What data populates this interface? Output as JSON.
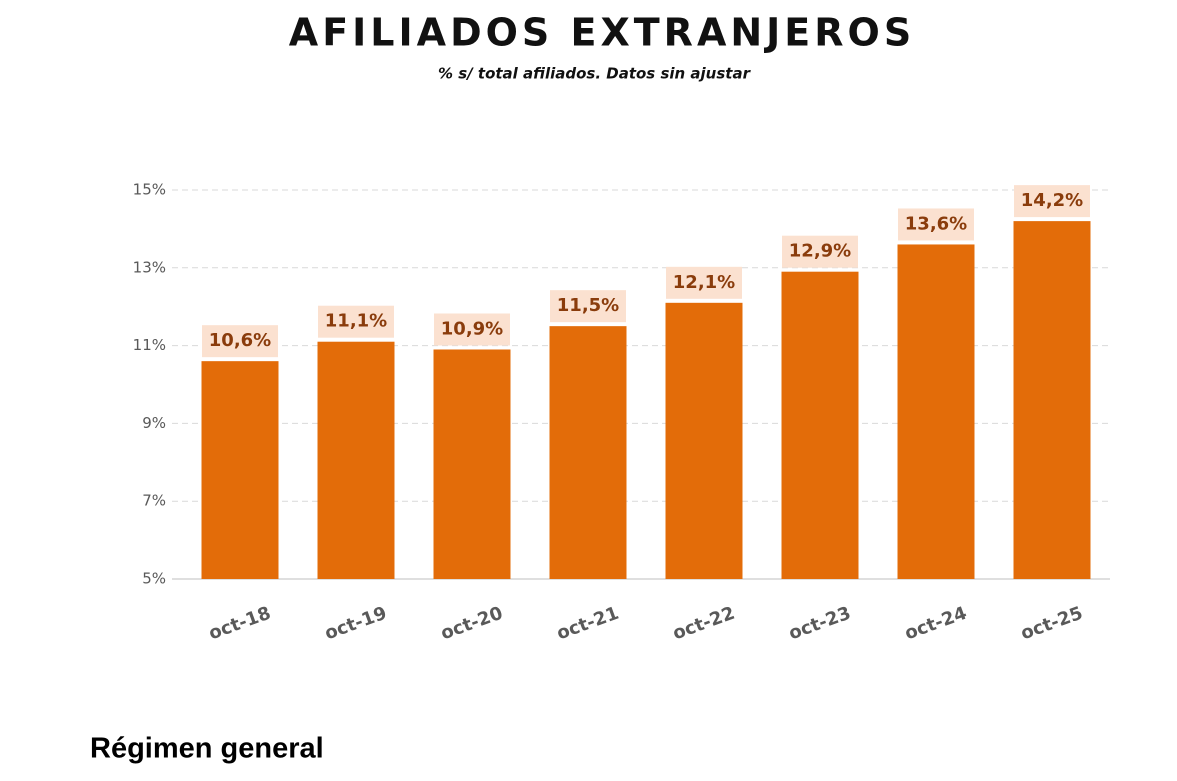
{
  "chart_data": {
    "type": "bar",
    "title": "AFILIADOS EXTRANJEROS",
    "subtitle": "% s/ total afiliados. Datos sin ajustar",
    "categories": [
      "oct-18",
      "oct-19",
      "oct-20",
      "oct-21",
      "oct-22",
      "oct-23",
      "oct-24",
      "oct-25"
    ],
    "values": [
      10.6,
      11.1,
      10.9,
      11.5,
      12.1,
      12.9,
      13.6,
      14.2
    ],
    "value_labels": [
      "10,6%",
      "11,1%",
      "10,9%",
      "11,5%",
      "12,1%",
      "12,9%",
      "13,6%",
      "14,2%"
    ],
    "color": "#e36c09",
    "ylim": [
      5,
      15
    ],
    "yticks": [
      {
        "value": 5,
        "label": "5%"
      },
      {
        "value": 7,
        "label": "7%"
      },
      {
        "value": 9,
        "label": "9%"
      },
      {
        "value": 11,
        "label": "11%"
      },
      {
        "value": 13,
        "label": "13%"
      },
      {
        "value": 15,
        "label": "15%"
      }
    ],
    "grid": true
  },
  "section_heading": "Régimen general"
}
